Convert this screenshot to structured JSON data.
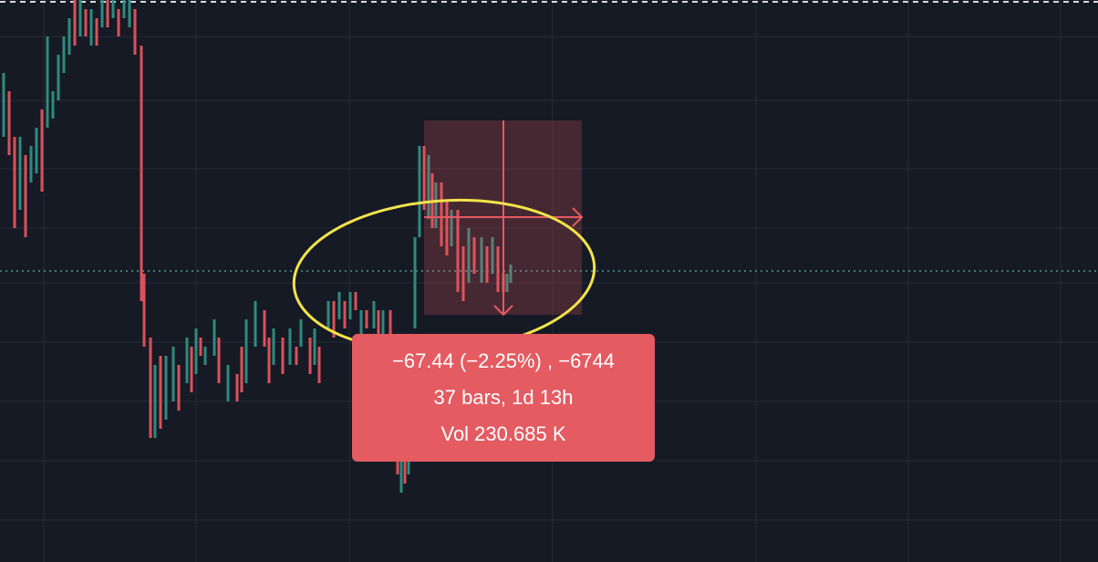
{
  "tooltip": {
    "change": "−67.44 (−2.25%) , −6744",
    "bars": "37 bars, 1d 13h",
    "volume": "Vol 230.685 K"
  }
}
